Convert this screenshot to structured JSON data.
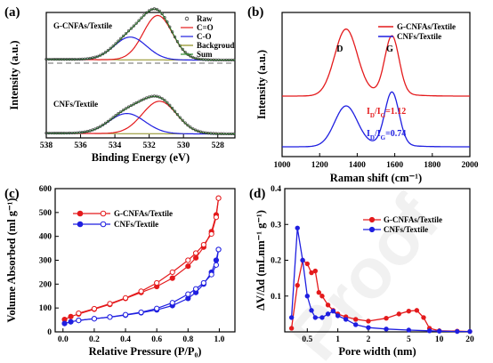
{
  "colors": {
    "red": "#e41a1c",
    "blue": "#1f1fe0",
    "green": "#2e8b2e",
    "olive": "#8c8c1a",
    "black": "#000000",
    "grey": "#888888"
  },
  "watermark": "Proof",
  "chart_data": [
    {
      "id": "a",
      "type": "line",
      "panel_label": "(a)",
      "xlabel": "Binding Energy (eV)",
      "ylabel": "Intensity (a.u.)",
      "xlim": [
        538,
        527
      ],
      "xticks": [
        538,
        536,
        534,
        532,
        530,
        528
      ],
      "xtick_labels": [
        "538",
        "536",
        "534",
        "532",
        "530",
        "528"
      ],
      "annotations": [
        "G-CNFAs/Textile",
        "CNFs/Textile"
      ],
      "legend": [
        "Raw",
        "C=O",
        "C-O",
        "Backgroud",
        "Sum"
      ],
      "legend_position": "top-right",
      "series": [
        {
          "name": "C=O",
          "sample": "G-CNFAs/Textile",
          "center": 531.5,
          "sigma": 0.85,
          "height": 0.86
        },
        {
          "name": "C-O",
          "sample": "G-CNFAs/Textile",
          "center": 533.1,
          "sigma": 0.95,
          "height": 0.44
        },
        {
          "name": "C=O",
          "sample": "CNFs/Textile",
          "center": 531.4,
          "sigma": 1.0,
          "height": 0.63
        },
        {
          "name": "C-O",
          "sample": "CNFs/Textile",
          "center": 533.3,
          "sigma": 1.05,
          "height": 0.39
        }
      ]
    },
    {
      "id": "b",
      "type": "line",
      "panel_label": "(b)",
      "xlabel": "Raman shift (cm⁻¹)",
      "ylabel": "Intensity (a.u.)",
      "xlim": [
        1000,
        2000
      ],
      "xticks": [
        1000,
        1200,
        1400,
        1600,
        1800,
        2000
      ],
      "xtick_labels": [
        "1000",
        "1200",
        "1400",
        "1600",
        "1800",
        "2000"
      ],
      "peak_labels": [
        "D",
        "G"
      ],
      "ratio_labels": [
        {
          "series": "G-CNFAs/Textile",
          "text": "I",
          "sub1": "D",
          "mid": "/I",
          "sub2": "G",
          "value": "=1.12"
        },
        {
          "series": "CNFs/Textile",
          "text": "I",
          "sub1": "D",
          "mid": "/I",
          "sub2": "G",
          "value": "=0.74"
        }
      ],
      "legend": [
        "G-CNFAs/Textile",
        "CNFs/Textile"
      ],
      "legend_position": "top-right",
      "series": [
        {
          "name": "G-CNFAs/Textile",
          "D_peak": 1340,
          "D_height": 0.86,
          "G_peak": 1585,
          "G_height": 0.76,
          "baseline": 0.14
        },
        {
          "name": "CNFs/Textile",
          "D_peak": 1340,
          "D_height": 0.66,
          "G_peak": 1585,
          "G_height": 0.88,
          "baseline": 0.0
        }
      ]
    },
    {
      "id": "c",
      "type": "line",
      "panel_label": "(c)",
      "xlabel": "Relative Pressure (P/P₀)",
      "ylabel": "Volume Absorbed (ml g⁻¹)",
      "xlim": [
        -0.05,
        1.1
      ],
      "ylim": [
        0,
        600
      ],
      "xticks": [
        0.0,
        0.2,
        0.4,
        0.6,
        0.8,
        1.0
      ],
      "xtick_labels": [
        "0.0",
        "0.2",
        "0.4",
        "0.6",
        "0.8",
        "1.0"
      ],
      "yticks": [
        0,
        100,
        200,
        300,
        400,
        500,
        600
      ],
      "ytick_labels": [
        "0",
        "100",
        "200",
        "300",
        "400",
        "500",
        "600"
      ],
      "legend": [
        "G-CNFAs/Textile",
        "CNFs/Textile"
      ],
      "legend_position": "top-left",
      "series": [
        {
          "name": "G-CNFAs/Textile adsorption",
          "x": [
            0.01,
            0.05,
            0.1,
            0.2,
            0.3,
            0.4,
            0.5,
            0.6,
            0.7,
            0.8,
            0.85,
            0.9,
            0.95,
            0.98,
            0.995
          ],
          "y": [
            52,
            64,
            75,
            95,
            115,
            140,
            165,
            190,
            225,
            275,
            310,
            355,
            420,
            490,
            560
          ]
        },
        {
          "name": "G-CNFAs/Textile desorption",
          "x": [
            0.995,
            0.98,
            0.95,
            0.9,
            0.85,
            0.8,
            0.7,
            0.6,
            0.5,
            0.4,
            0.3,
            0.2,
            0.1
          ],
          "y": [
            560,
            480,
            410,
            365,
            330,
            300,
            250,
            205,
            170,
            142,
            118,
            97,
            78
          ]
        },
        {
          "name": "CNFs/Textile adsorption",
          "x": [
            0.01,
            0.05,
            0.1,
            0.2,
            0.3,
            0.4,
            0.5,
            0.6,
            0.7,
            0.8,
            0.85,
            0.9,
            0.95,
            0.98,
            0.995
          ],
          "y": [
            35,
            42,
            48,
            55,
            62,
            70,
            80,
            92,
            110,
            140,
            165,
            200,
            250,
            300,
            345
          ]
        },
        {
          "name": "CNFs/Textile desorption",
          "x": [
            0.995,
            0.98,
            0.95,
            0.9,
            0.85,
            0.8,
            0.7,
            0.6,
            0.5,
            0.4,
            0.3,
            0.2,
            0.1
          ],
          "y": [
            345,
            280,
            240,
            205,
            180,
            158,
            122,
            98,
            82,
            72,
            62,
            55,
            48
          ]
        }
      ]
    },
    {
      "id": "d",
      "type": "line",
      "panel_label": "(d)",
      "xlabel": "Pore width (nm)",
      "ylabel": "ΔV/Δd (mLnm⁻¹ g⁻¹)",
      "xscale": "log",
      "xlim": [
        0.3,
        20
      ],
      "ylim": [
        0,
        0.4
      ],
      "xticks": [
        0.5,
        1,
        2,
        5,
        10,
        20
      ],
      "xtick_labels": [
        "0.5",
        "1",
        "2",
        "5",
        "10",
        "20"
      ],
      "yticks": [
        0.1,
        0.2,
        0.3,
        0.4
      ],
      "ytick_labels": [
        "0.1",
        "0.2",
        "0.3",
        "0.4"
      ],
      "legend": [
        "G-CNFAs/Textile",
        "CNFs/Textile"
      ],
      "legend_position": "top-right",
      "series": [
        {
          "name": "G-CNFAs/Textile",
          "x": [
            0.35,
            0.4,
            0.45,
            0.5,
            0.55,
            0.6,
            0.65,
            0.7,
            0.8,
            0.9,
            1.0,
            1.2,
            1.5,
            2,
            3,
            4,
            5,
            6,
            7,
            8,
            10,
            15,
            20
          ],
          "y": [
            0.01,
            0.13,
            0.2,
            0.19,
            0.165,
            0.17,
            0.11,
            0.1,
            0.075,
            0.06,
            0.05,
            0.042,
            0.035,
            0.03,
            0.038,
            0.05,
            0.058,
            0.06,
            0.04,
            0.01,
            0.003,
            0.002,
            0.001
          ]
        },
        {
          "name": "CNFs/Textile",
          "x": [
            0.35,
            0.4,
            0.45,
            0.5,
            0.55,
            0.6,
            0.7,
            0.8,
            0.9,
            1.0,
            1.2,
            1.5,
            2,
            3,
            5,
            8,
            10,
            15,
            20
          ],
          "y": [
            0.04,
            0.29,
            0.2,
            0.1,
            0.06,
            0.04,
            0.04,
            0.05,
            0.058,
            0.045,
            0.035,
            0.02,
            0.012,
            0.008,
            0.005,
            0.003,
            0.002,
            0.001,
            0.001
          ]
        }
      ]
    }
  ]
}
